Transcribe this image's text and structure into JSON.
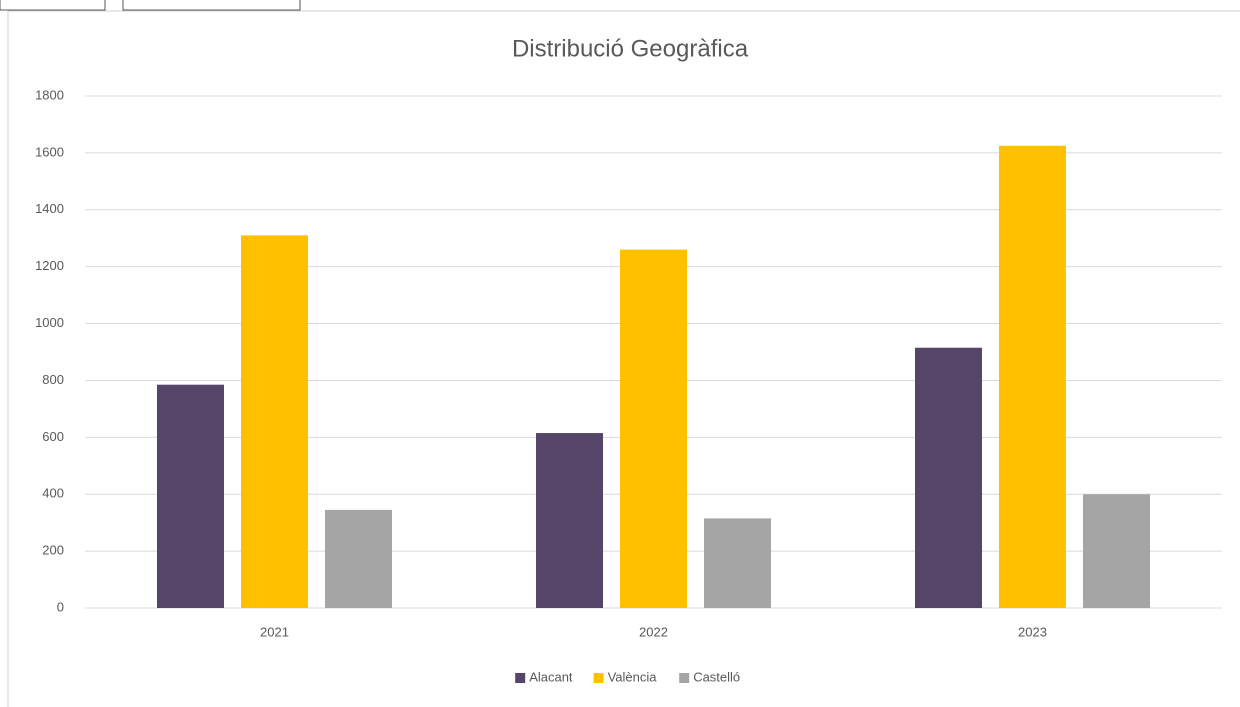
{
  "chart_data": {
    "type": "bar",
    "title": "Distribució Geogràfica",
    "categories": [
      "2021",
      "2022",
      "2023"
    ],
    "series": [
      {
        "name": "Alacant",
        "color": "#554568",
        "values": [
          785,
          615,
          915
        ]
      },
      {
        "name": "València",
        "color": "#ffc000",
        "values": [
          1310,
          1260,
          1625
        ]
      },
      {
        "name": "Castelló",
        "color": "#a5a5a5",
        "values": [
          345,
          315,
          400
        ]
      }
    ],
    "ylim": [
      0,
      1800
    ],
    "yticks": [
      0,
      200,
      400,
      600,
      800,
      1000,
      1200,
      1400,
      1600,
      1800
    ],
    "grid": true,
    "legend": "bottom"
  }
}
